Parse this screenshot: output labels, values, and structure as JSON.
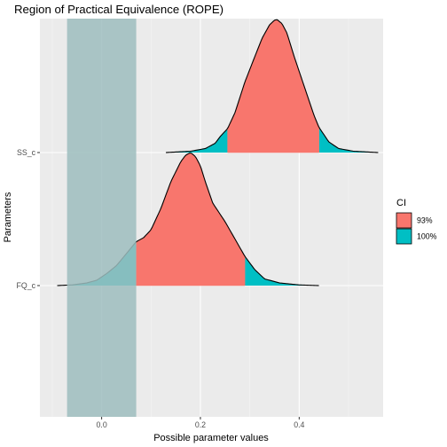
{
  "chart_data": {
    "type": "area",
    "title": "Region of Practical Equivalence (ROPE)",
    "xlabel": "Possible parameter values",
    "ylabel": "Parameters",
    "xlim": [
      -0.125,
      0.57
    ],
    "x_ticks": [
      0.0,
      0.2,
      0.4
    ],
    "x_tick_labels": [
      "0.0",
      "0.2",
      "0.4"
    ],
    "categories": [
      "FQ_c",
      "SS_c"
    ],
    "grid": true,
    "rope": {
      "range": [
        -0.07,
        0.07
      ],
      "color": "#9ebdbe"
    },
    "legend": {
      "title": "CI",
      "placement": "right",
      "entries": [
        {
          "label": "93%",
          "color": "#f8766d"
        },
        {
          "label": "100%",
          "color": "#00bfc4"
        }
      ]
    },
    "series": [
      {
        "category": "FQ_c",
        "ci93": [
          0.07,
          0.29
        ],
        "density_x": [
          -0.09,
          -0.06,
          -0.03,
          -0.01,
          0.01,
          0.03,
          0.05,
          0.07,
          0.085,
          0.1,
          0.12,
          0.14,
          0.16,
          0.17,
          0.18,
          0.19,
          0.2,
          0.21,
          0.225,
          0.25,
          0.27,
          0.29,
          0.31,
          0.33,
          0.36,
          0.4,
          0.44
        ],
        "density_y": [
          0.0,
          0.005,
          0.02,
          0.04,
          0.09,
          0.15,
          0.24,
          0.33,
          0.36,
          0.42,
          0.58,
          0.78,
          0.93,
          0.98,
          1.0,
          0.97,
          0.9,
          0.78,
          0.62,
          0.48,
          0.35,
          0.22,
          0.12,
          0.05,
          0.02,
          0.005,
          0.0
        ]
      },
      {
        "category": "SS_c",
        "ci93": [
          0.255,
          0.44
        ],
        "density_x": [
          0.13,
          0.18,
          0.21,
          0.23,
          0.24,
          0.255,
          0.27,
          0.29,
          0.31,
          0.325,
          0.34,
          0.35,
          0.355,
          0.365,
          0.375,
          0.39,
          0.41,
          0.43,
          0.44,
          0.46,
          0.48,
          0.51,
          0.56
        ],
        "density_y": [
          0.0,
          0.01,
          0.03,
          0.07,
          0.12,
          0.18,
          0.3,
          0.53,
          0.72,
          0.86,
          0.96,
          0.995,
          1.0,
          0.97,
          0.9,
          0.72,
          0.5,
          0.28,
          0.19,
          0.08,
          0.03,
          0.01,
          0.0
        ]
      }
    ]
  }
}
